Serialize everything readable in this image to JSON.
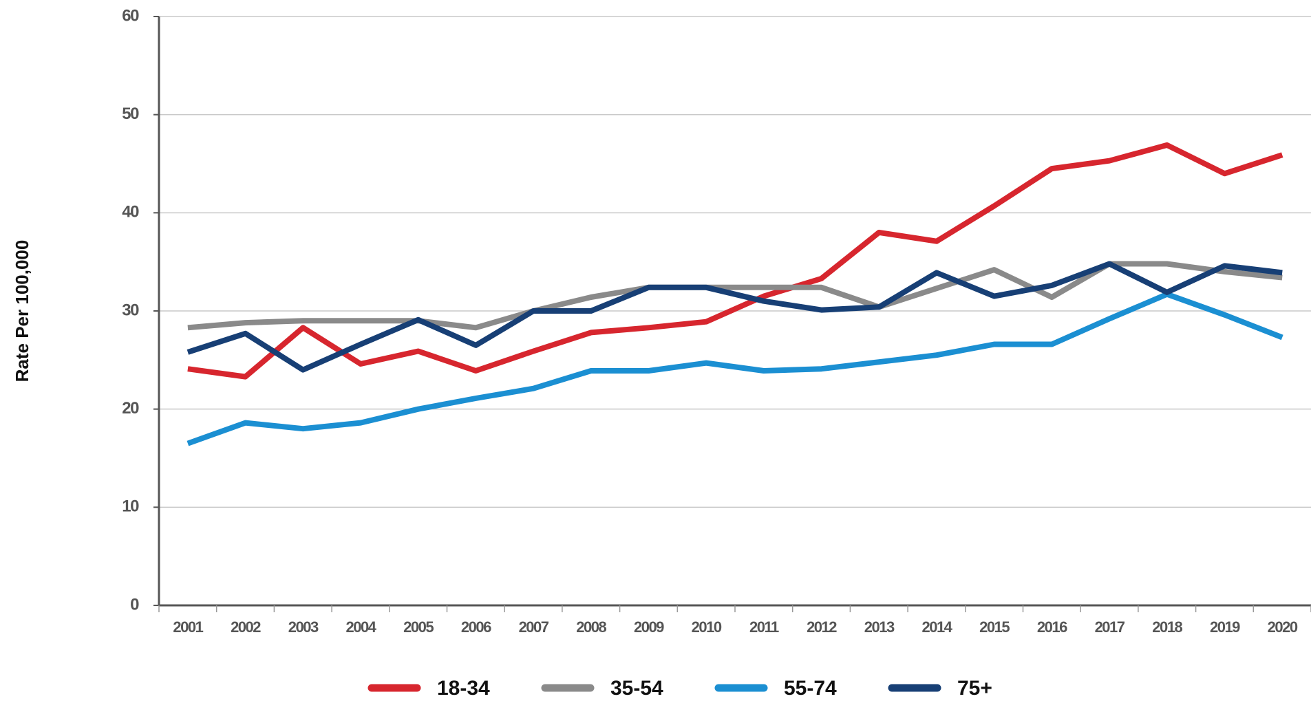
{
  "chart_data": {
    "type": "line",
    "y_label": "Rate Per 100,000",
    "categories": [
      "2001",
      "2002",
      "2003",
      "2004",
      "2005",
      "2006",
      "2007",
      "2008",
      "2009",
      "2010",
      "2011",
      "2012",
      "2013",
      "2014",
      "2015",
      "2016",
      "2017",
      "2018",
      "2019",
      "2020"
    ],
    "series": [
      {
        "name": "18-34",
        "color": "#d7262e",
        "values": [
          24.1,
          23.3,
          28.3,
          24.6,
          25.9,
          23.9,
          25.9,
          27.8,
          28.3,
          28.9,
          31.5,
          33.3,
          38,
          37.1,
          40.7,
          44.5,
          45.3,
          46.9,
          44,
          45.9
        ]
      },
      {
        "name": "35-54",
        "color": "#8a8a8a",
        "values": [
          28.3,
          28.8,
          29,
          29,
          29,
          28.3,
          30,
          31.4,
          32.4,
          32.4,
          32.4,
          32.4,
          30.4,
          32.3,
          34.2,
          31.4,
          34.8,
          34.8,
          34,
          33.4
        ]
      },
      {
        "name": "55-74",
        "color": "#1b8fd2",
        "values": [
          16.5,
          18.6,
          18,
          18.6,
          20,
          21.1,
          22.1,
          23.9,
          23.9,
          24.7,
          23.9,
          24.1,
          24.8,
          25.5,
          26.6,
          26.6,
          29.2,
          31.7,
          29.6,
          27.3
        ]
      },
      {
        "name": "75+",
        "color": "#173f75",
        "values": [
          25.8,
          27.7,
          24,
          26.6,
          29.1,
          26.5,
          30,
          30,
          32.4,
          32.4,
          31,
          30.1,
          30.4,
          33.9,
          31.5,
          32.6,
          34.8,
          31.9,
          34.6,
          33.9
        ]
      }
    ],
    "ylim": [
      0,
      60
    ],
    "yticks": [
      0,
      10,
      20,
      30,
      40,
      50,
      60
    ],
    "grid": true,
    "legend": "bottom"
  }
}
